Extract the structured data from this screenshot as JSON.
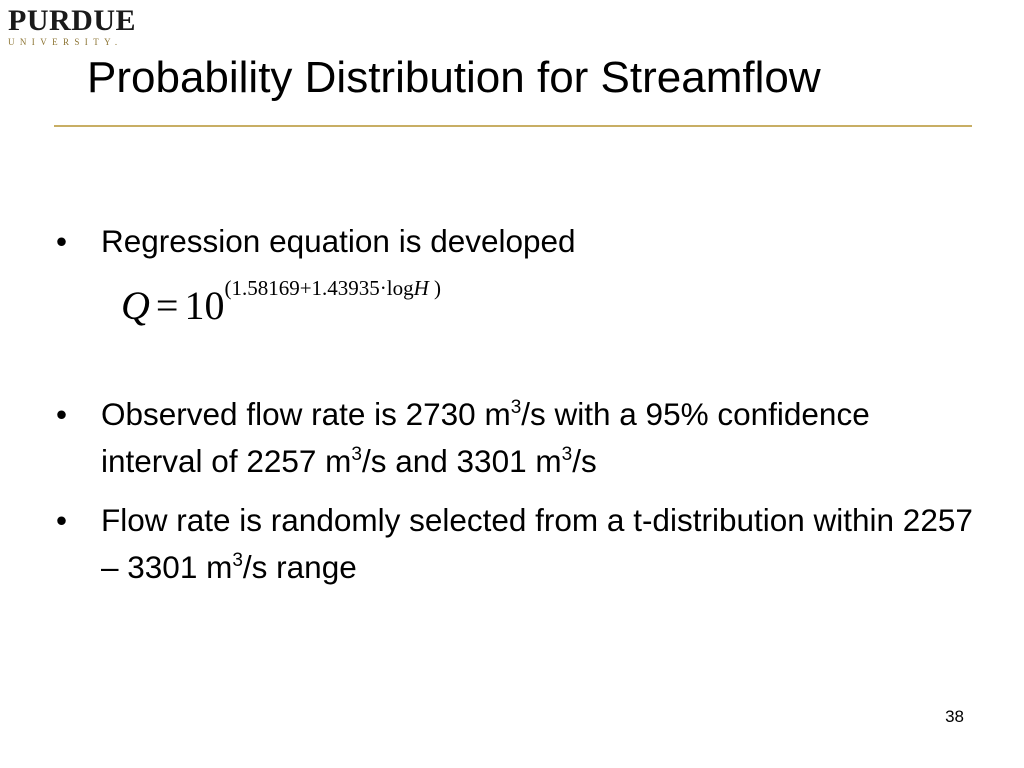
{
  "logo": {
    "name": "PURDUE",
    "sub": "UNIVERSITY."
  },
  "slide": {
    "title": "Probability Distribution for Streamflow",
    "bullet_char": "•",
    "bullets": [
      {
        "text": "Regression equation is developed"
      },
      {
        "text1": "Observed flow rate is 2730 m",
        "sup1": "3",
        "text2": "/s with a 95% confidence interval of 2257 m",
        "sup2": "3",
        "text3": "/s and 3301 m",
        "sup3": "3",
        "text4": "/s"
      },
      {
        "text1": "Flow rate is randomly selected from a t-distribution within 2257 – 3301 m",
        "sup1": "3",
        "text2": "/s range"
      }
    ],
    "equation": {
      "lhs": "Q",
      "eq": "=",
      "base": "10",
      "exp_open": "(1.58169+1.43935·log",
      "exp_var": "H",
      "exp_close": " )"
    },
    "page_number": "38"
  },
  "colors": {
    "accent_rule": "#c8ae64",
    "logo_gold": "#8c7433"
  }
}
